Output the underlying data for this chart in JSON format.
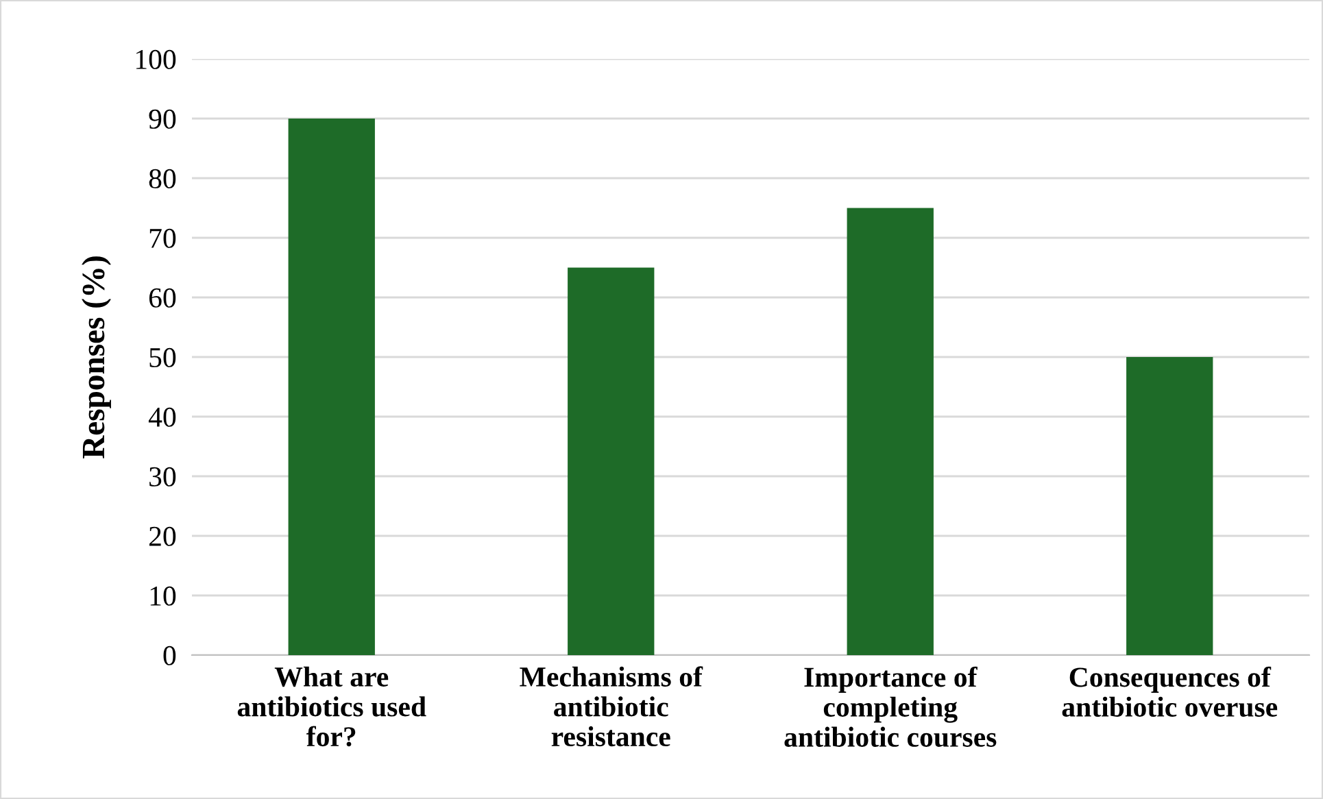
{
  "chart_data": {
    "type": "bar",
    "ylabel": "Responses (%)",
    "categories": [
      "What are\nantibiotics used\nfor?",
      "Mechanisms of\nantibiotic\nresistance",
      "Importance of\ncompleting\nantibiotic courses",
      "Consequences of\nantibiotic overuse"
    ],
    "values": [
      90,
      65,
      75,
      50
    ],
    "color": "#1e6b28",
    "ylim": [
      0,
      100
    ],
    "yticks": [
      0,
      10,
      20,
      30,
      40,
      50,
      60,
      70,
      80,
      90,
      100
    ],
    "grid": "y",
    "legend": false
  }
}
